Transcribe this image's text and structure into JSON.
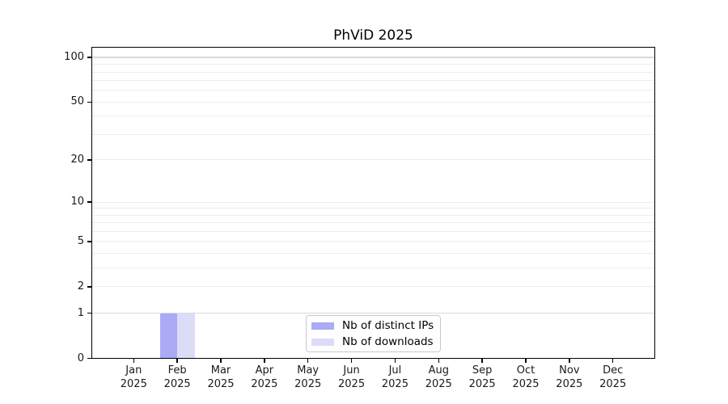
{
  "style": {
    "background": "#ffffff",
    "grid_minor_color": "#ececec",
    "grid_major_color": "#d9d9d9",
    "spine_color": "#000000",
    "text_color": "#1a1a1a",
    "legend_border_color": "#c9c9c9"
  },
  "chart_data": {
    "type": "bar",
    "title": "PhViD 2025",
    "x": [
      [
        "Jan",
        "2025"
      ],
      [
        "Feb",
        "2025"
      ],
      [
        "Mar",
        "2025"
      ],
      [
        "Apr",
        "2025"
      ],
      [
        "May",
        "2025"
      ],
      [
        "Jun",
        "2025"
      ],
      [
        "Jul",
        "2025"
      ],
      [
        "Aug",
        "2025"
      ],
      [
        "Sep",
        "2025"
      ],
      [
        "Oct",
        "2025"
      ],
      [
        "Nov",
        "2025"
      ],
      [
        "Dec",
        "2025"
      ]
    ],
    "series": [
      {
        "name": "Nb of distinct IPs",
        "color": "#aaaaf7",
        "values": [
          0,
          1,
          0,
          0,
          0,
          0,
          0,
          0,
          0,
          0,
          0,
          0
        ]
      },
      {
        "name": "Nb of downloads",
        "color": "#dcdcf9",
        "values": [
          0,
          1,
          0,
          0,
          0,
          0,
          0,
          0,
          0,
          0,
          0,
          0
        ]
      }
    ],
    "yscale": "log1p",
    "ylim": [
      0,
      118
    ],
    "yticks": [
      0,
      1,
      2,
      5,
      10,
      20,
      50,
      100
    ],
    "minor_gridlines": [
      2,
      3,
      4,
      5,
      6,
      7,
      8,
      9,
      10,
      20,
      30,
      40,
      50,
      60,
      70,
      80,
      90
    ],
    "major_gridlines": [
      1,
      100
    ],
    "grid": "horizontal",
    "legend_position": "lower center",
    "xlabel": "",
    "ylabel": ""
  }
}
